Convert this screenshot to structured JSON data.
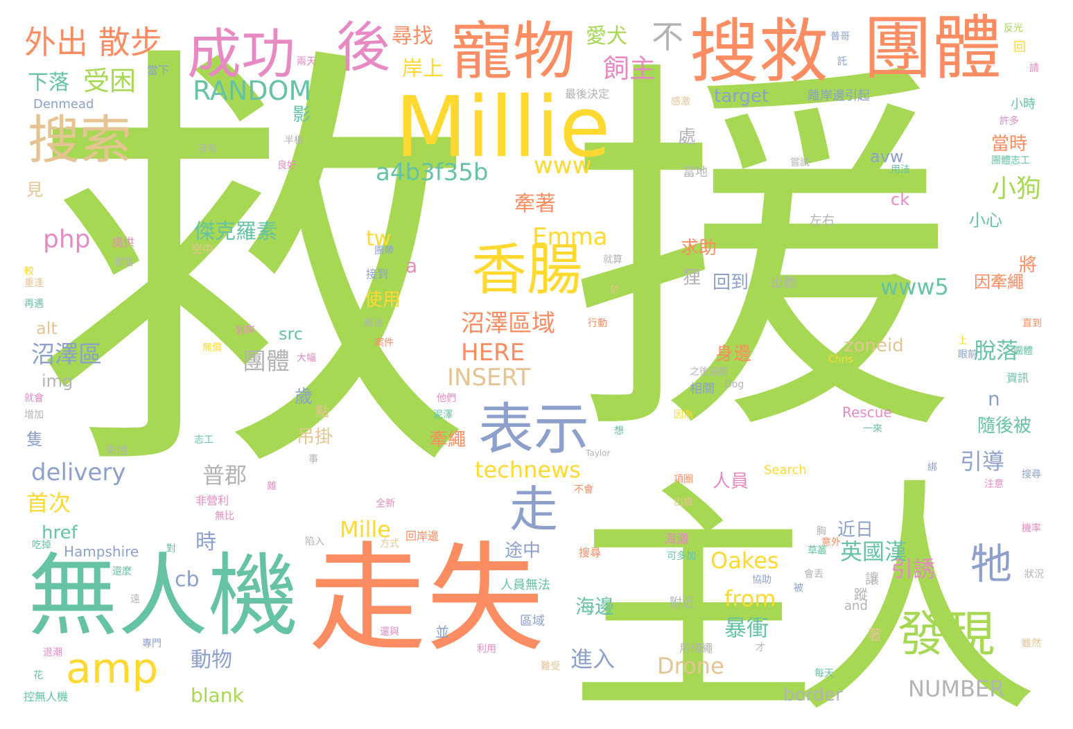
{
  "palette": {
    "green": "#a6d854",
    "orange": "#fc8d62",
    "yellow": "#ffd92f",
    "blue": "#8da0cb",
    "teal": "#66c2a5",
    "pink": "#e78ac3",
    "tan": "#e5c494",
    "gray": "#b3b3b3"
  },
  "words": [
    {
      "text": "救",
      "color": "green",
      "size": 640
    },
    {
      "text": "援",
      "color": "green",
      "size": 560
    },
    {
      "text": "主人",
      "color": "green",
      "size": 360
    },
    {
      "text": "走失",
      "color": "orange",
      "size": 170
    },
    {
      "text": "無人機",
      "color": "teal",
      "size": 130
    },
    {
      "text": "Millie",
      "color": "yellow",
      "size": 120
    },
    {
      "text": "搜救",
      "color": "orange",
      "size": 100
    },
    {
      "text": "團體",
      "color": "orange",
      "size": 100
    },
    {
      "text": "寵物",
      "color": "orange",
      "size": 90
    },
    {
      "text": "成功",
      "color": "pink",
      "size": 78
    },
    {
      "text": "後",
      "color": "pink",
      "size": 78
    },
    {
      "text": "香腸",
      "color": "yellow",
      "size": 80
    },
    {
      "text": "表示",
      "color": "blue",
      "size": 80
    },
    {
      "text": "搜索",
      "color": "tan",
      "size": 75
    },
    {
      "text": "發現",
      "color": "green",
      "size": 70
    },
    {
      "text": "amp",
      "color": "yellow",
      "size": 60
    },
    {
      "text": "走",
      "color": "blue",
      "size": 70
    },
    {
      "text": "牠",
      "color": "blue",
      "size": 60
    },
    {
      "text": "外出 散步",
      "color": "orange",
      "size": 46
    },
    {
      "text": "不",
      "color": "gray",
      "size": 46
    },
    {
      "text": "RANDOM",
      "color": "teal",
      "size": 38
    },
    {
      "text": "飼主",
      "color": "pink",
      "size": 38
    },
    {
      "text": "受困",
      "color": "green",
      "size": 38
    },
    {
      "text": "下落",
      "color": "teal",
      "size": 30
    },
    {
      "text": "尋找",
      "color": "orange",
      "size": 30
    },
    {
      "text": "岸上",
      "color": "yellow",
      "size": 30
    },
    {
      "text": "愛犬",
      "color": "green",
      "size": 30
    },
    {
      "text": "a4b3f35b",
      "color": "teal",
      "size": 34
    },
    {
      "text": "www",
      "color": "yellow",
      "size": 34
    },
    {
      "text": "小狗",
      "color": "green",
      "size": 36
    },
    {
      "text": "當時",
      "color": "orange",
      "size": 26
    },
    {
      "text": "Emma",
      "color": "yellow",
      "size": 34
    },
    {
      "text": "php",
      "color": "pink",
      "size": 36
    },
    {
      "text": "傑克羅素",
      "color": "teal",
      "size": 30
    },
    {
      "text": "牽著",
      "color": "orange",
      "size": 30
    },
    {
      "text": "沼澤區域",
      "color": "orange",
      "size": 34
    },
    {
      "text": "www5",
      "color": "teal",
      "size": 32
    },
    {
      "text": "HERE",
      "color": "orange",
      "size": 34
    },
    {
      "text": "INSERT",
      "color": "tan",
      "size": 34
    },
    {
      "text": "團體",
      "color": "gray",
      "size": 34
    },
    {
      "text": "沼澤區",
      "color": "blue",
      "size": 34
    },
    {
      "text": "delivery",
      "color": "blue",
      "size": 34
    },
    {
      "text": "technews",
      "color": "yellow",
      "size": 32
    },
    {
      "text": "普郡",
      "color": "gray",
      "size": 32
    },
    {
      "text": "首次",
      "color": "yellow",
      "size": 32
    },
    {
      "text": "引導",
      "color": "blue",
      "size": 32
    },
    {
      "text": "脫落",
      "color": "teal",
      "size": 32
    },
    {
      "text": "引誘",
      "color": "pink",
      "size": 32
    },
    {
      "text": "英國漢",
      "color": "teal",
      "size": 32
    },
    {
      "text": "Oakes",
      "color": "yellow",
      "size": 32
    },
    {
      "text": "from",
      "color": "yellow",
      "size": 32
    },
    {
      "text": "Mille",
      "color": "yellow",
      "size": 32
    },
    {
      "text": "暴衝",
      "color": "teal",
      "size": 32
    },
    {
      "text": "進入",
      "color": "blue",
      "size": 32
    },
    {
      "text": "Drone",
      "color": "tan",
      "size": 32
    },
    {
      "text": "NUMBER",
      "color": "gray",
      "size": 32
    },
    {
      "text": "border",
      "color": "gray",
      "size": 26
    },
    {
      "text": "動物",
      "color": "blue",
      "size": 30
    },
    {
      "text": "blank",
      "color": "green",
      "size": 28
    },
    {
      "text": "海邊",
      "color": "teal",
      "size": 28
    },
    {
      "text": "時",
      "color": "blue",
      "size": 30
    },
    {
      "text": "cb",
      "color": "blue",
      "size": 30
    },
    {
      "text": "src",
      "color": "teal",
      "size": 24
    },
    {
      "text": "alt",
      "color": "tan",
      "size": 24
    },
    {
      "text": "img",
      "color": "gray",
      "size": 24
    },
    {
      "text": "href",
      "color": "teal",
      "size": 26
    },
    {
      "text": "tw",
      "color": "yellow",
      "size": 30
    },
    {
      "text": "a",
      "color": "pink",
      "size": 28
    },
    {
      "text": "n",
      "color": "blue",
      "size": 28
    },
    {
      "text": "target",
      "color": "blue",
      "size": 26
    },
    {
      "text": "zoneid",
      "color": "tan",
      "size": 26
    },
    {
      "text": "avw",
      "color": "blue",
      "size": 24
    },
    {
      "text": "ck",
      "color": "pink",
      "size": 24
    },
    {
      "text": "回到",
      "color": "blue",
      "size": 26
    },
    {
      "text": "身邊",
      "color": "orange",
      "size": 26
    },
    {
      "text": "人員",
      "color": "pink",
      "size": 26
    },
    {
      "text": "近日",
      "color": "blue",
      "size": 26
    },
    {
      "text": "途中",
      "color": "blue",
      "size": 26
    },
    {
      "text": "隨後被",
      "color": "teal",
      "size": 26
    },
    {
      "text": "求助",
      "color": "orange",
      "size": 26
    },
    {
      "text": "狸",
      "color": "gray",
      "size": 26
    },
    {
      "text": "使用",
      "color": "yellow",
      "size": 26
    },
    {
      "text": "吊掛",
      "color": "tan",
      "size": 26
    },
    {
      "text": "牽繩",
      "color": "orange",
      "size": 26
    },
    {
      "text": "歲",
      "color": "blue",
      "size": 26
    },
    {
      "text": "影",
      "color": "teal",
      "size": 26
    },
    {
      "text": "處",
      "color": "gray",
      "size": 26
    },
    {
      "text": "將",
      "color": "orange",
      "size": 26
    },
    {
      "text": "因牽繩",
      "color": "orange",
      "size": 24
    },
    {
      "text": "小心",
      "color": "teal",
      "size": 24
    },
    {
      "text": "見",
      "color": "tan",
      "size": 24
    },
    {
      "text": "隻",
      "color": "blue",
      "size": 24
    },
    {
      "text": "Hampshire",
      "color": "blue",
      "size": 20
    },
    {
      "text": "Rescue",
      "color": "pink",
      "size": 20
    },
    {
      "text": "Search",
      "color": "yellow",
      "size": 18
    },
    {
      "text": "Denmead",
      "color": "blue",
      "size": 18
    },
    {
      "text": "離岸邊引起",
      "color": "blue",
      "size": 18
    },
    {
      "text": "最後決定",
      "color": "gray",
      "size": 16
    },
    {
      "text": "人員無法",
      "color": "teal",
      "size": 18
    },
    {
      "text": "回岸邊",
      "color": "orange",
      "size": 16
    },
    {
      "text": "海灘",
      "color": "pink",
      "size": 18
    },
    {
      "text": "搜尋",
      "color": "orange",
      "size": 16
    },
    {
      "text": "控無人機",
      "color": "teal",
      "size": 16
    },
    {
      "text": "當地",
      "color": "gray",
      "size": 18
    },
    {
      "text": "附近",
      "color": "gray",
      "size": 18
    },
    {
      "text": "區域",
      "color": "blue",
      "size": 18
    },
    {
      "text": "出動",
      "color": "gray",
      "size": 18
    },
    {
      "text": "左右",
      "color": "gray",
      "size": 18
    },
    {
      "text": "小時",
      "color": "teal",
      "size": 18
    },
    {
      "text": "讓",
      "color": "gray",
      "size": 20
    },
    {
      "text": "蹤",
      "color": "gray",
      "size": 20
    },
    {
      "text": "並",
      "color": "blue",
      "size": 20
    },
    {
      "text": "著",
      "color": "tan",
      "size": 20
    },
    {
      "text": "點",
      "color": "tan",
      "size": 20
    },
    {
      "text": "and",
      "color": "gray",
      "size": 18
    },
    {
      "text": "相關",
      "color": "blue",
      "size": 18
    },
    {
      "text": "用細繩",
      "color": "gray",
      "size": 16
    },
    {
      "text": "資訊",
      "color": "teal",
      "size": 16
    },
    {
      "text": "當下",
      "color": "blue",
      "size": 16
    },
    {
      "text": "提供",
      "color": "pink",
      "size": 16
    },
    {
      "text": "空中",
      "color": "tan",
      "size": 16
    },
    {
      "text": "接到",
      "color": "blue",
      "size": 16
    },
    {
      "text": "行動",
      "color": "orange",
      "size": 14
    },
    {
      "text": "失地",
      "color": "gray",
      "size": 16
    },
    {
      "text": "非營利",
      "color": "pink",
      "size": 16
    },
    {
      "text": "無比",
      "color": "pink",
      "size": 14
    },
    {
      "text": "吃掉",
      "color": "teal",
      "size": 14
    },
    {
      "text": "專門",
      "color": "blue",
      "size": 14
    },
    {
      "text": "花",
      "color": "teal",
      "size": 14
    },
    {
      "text": "較",
      "color": "yellow",
      "size": 14
    },
    {
      "text": "再遇",
      "color": "teal",
      "size": 14
    },
    {
      "text": "就會",
      "color": "pink",
      "size": 14
    },
    {
      "text": "增加",
      "color": "gray",
      "size": 14
    },
    {
      "text": "志工",
      "color": "teal",
      "size": 14
    },
    {
      "text": "相當",
      "color": "gray",
      "size": 14
    },
    {
      "text": "重逢",
      "color": "tan",
      "size": 14
    },
    {
      "text": "兩天",
      "color": "pink",
      "size": 14
    },
    {
      "text": "沒有",
      "color": "gray",
      "size": 14
    },
    {
      "text": "半根",
      "color": "gray",
      "size": 14
    },
    {
      "text": "良好",
      "color": "pink",
      "size": 14
    },
    {
      "text": "嘗試",
      "color": "gray",
      "size": 14
    },
    {
      "text": "用法",
      "color": "teal",
      "size": 14
    },
    {
      "text": "團體志工",
      "color": "teal",
      "size": 14
    },
    {
      "text": "許多",
      "color": "pink",
      "size": 14
    },
    {
      "text": "反光",
      "color": "green",
      "size": 14
    },
    {
      "text": "普哥",
      "color": "blue",
      "size": 14
    },
    {
      "text": "託",
      "color": "blue",
      "size": 14
    },
    {
      "text": "請",
      "color": "pink",
      "size": 14
    },
    {
      "text": "回",
      "color": "yellow",
      "size": 18
    },
    {
      "text": "感激",
      "color": "tan",
      "size": 14
    },
    {
      "text": "無法",
      "color": "gray",
      "size": 14
    },
    {
      "text": "到岸",
      "color": "pink",
      "size": 14
    },
    {
      "text": "案件",
      "color": "orange",
      "size": 14
    },
    {
      "text": "大幅",
      "color": "pink",
      "size": 14
    },
    {
      "text": "無償",
      "color": "yellow",
      "size": 14
    },
    {
      "text": "他們",
      "color": "pink",
      "size": 14
    },
    {
      "text": "泥澤",
      "color": "teal",
      "size": 14
    },
    {
      "text": "就算",
      "color": "gray",
      "size": 14
    },
    {
      "text": "於",
      "color": "tan",
      "size": 14
    },
    {
      "text": "團體",
      "color": "teal",
      "size": 14
    },
    {
      "text": "全新",
      "color": "pink",
      "size": 14
    },
    {
      "text": "不會",
      "color": "orange",
      "size": 14
    },
    {
      "text": "想",
      "color": "teal",
      "size": 14
    },
    {
      "text": "事",
      "color": "gray",
      "size": 14
    },
    {
      "text": "Taylor",
      "color": "gray",
      "size": 12
    },
    {
      "text": "Dog",
      "color": "gray",
      "size": 14
    },
    {
      "text": "Chris",
      "color": "yellow",
      "size": 14
    },
    {
      "text": "之後遠離",
      "color": "gray",
      "size": 14
    },
    {
      "text": "因為",
      "color": "yellow",
      "size": 14
    },
    {
      "text": "一來",
      "color": "teal",
      "size": 14
    },
    {
      "text": "直到",
      "color": "orange",
      "size": 14
    },
    {
      "text": "上",
      "color": "yellow",
      "size": 14
    },
    {
      "text": "眼前",
      "color": "blue",
      "size": 14
    },
    {
      "text": "綁",
      "color": "blue",
      "size": 14
    },
    {
      "text": "搜尋",
      "color": "blue",
      "size": 14
    },
    {
      "text": "注意",
      "color": "pink",
      "size": 14
    },
    {
      "text": "機率",
      "color": "pink",
      "size": 14
    },
    {
      "text": "狀況",
      "color": "gray",
      "size": 14
    },
    {
      "text": "雖然",
      "color": "tan",
      "size": 14
    },
    {
      "text": "項圈",
      "color": "orange",
      "size": 14
    },
    {
      "text": "出掛",
      "color": "tan",
      "size": 14
    },
    {
      "text": "可多加",
      "color": "teal",
      "size": 14
    },
    {
      "text": "意外",
      "color": "orange",
      "size": 14
    },
    {
      "text": "胸",
      "color": "gray",
      "size": 14
    },
    {
      "text": "草叢",
      "color": "teal",
      "size": 14
    },
    {
      "text": "會丟",
      "color": "gray",
      "size": 14
    },
    {
      "text": "被",
      "color": "blue",
      "size": 14
    },
    {
      "text": "協助",
      "color": "blue",
      "size": 14
    },
    {
      "text": "才",
      "color": "gray",
      "size": 14
    },
    {
      "text": "每天",
      "color": "teal",
      "size": 14
    },
    {
      "text": "利用",
      "color": "pink",
      "size": 14
    },
    {
      "text": "難受",
      "color": "tan",
      "size": 14
    },
    {
      "text": "還與",
      "color": "pink",
      "size": 14
    },
    {
      "text": "退潮",
      "color": "pink",
      "size": 14
    },
    {
      "text": "遠",
      "color": "gray",
      "size": 14
    },
    {
      "text": "還麼",
      "color": "teal",
      "size": 14
    },
    {
      "text": "對",
      "color": "teal",
      "size": 14
    },
    {
      "text": "方式",
      "color": "tan",
      "size": 14
    },
    {
      "text": "陷入",
      "color": "gray",
      "size": 14
    },
    {
      "text": "雜",
      "color": "pink",
      "size": 14
    },
    {
      "text": "團帶",
      "color": "blue",
      "size": 14
    }
  ]
}
